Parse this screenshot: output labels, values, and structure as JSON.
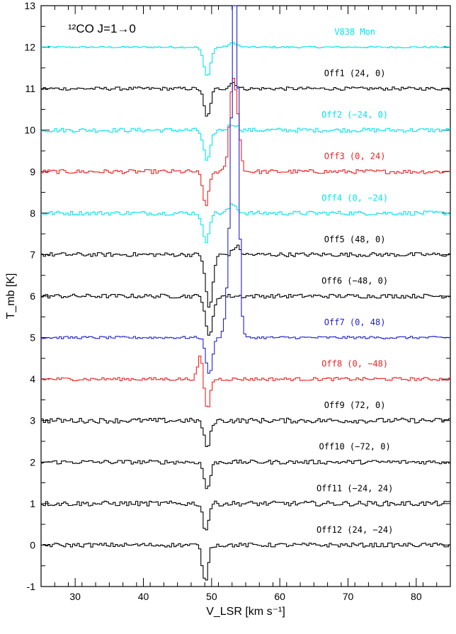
{
  "chart_data": {
    "type": "line",
    "title": "¹²CO J=1→0",
    "xlabel": "V_LSR [km s⁻¹]",
    "ylabel": "T_mb [K]",
    "xlim": [
      25,
      85
    ],
    "ylim": [
      -1,
      13
    ],
    "x_ticks": [
      30,
      40,
      50,
      60,
      70,
      80
    ],
    "y_ticks": [
      -1,
      0,
      1,
      2,
      3,
      4,
      5,
      6,
      7,
      8,
      9,
      10,
      11,
      12,
      13
    ],
    "grid": false,
    "series": [
      {
        "name": "V838 Mon",
        "offset": 12,
        "color": "#00e5ee",
        "features": [
          {
            "v": 49.2,
            "amp": -0.7,
            "w": 0.5
          },
          {
            "v": 53.0,
            "amp": 0.1,
            "w": 0.6
          }
        ],
        "noise": 0.02
      },
      {
        "name": "Off1 (24, 0)",
        "offset": 11,
        "color": "#000000",
        "features": [
          {
            "v": 49.2,
            "amp": -0.7,
            "w": 0.45
          },
          {
            "v": 53.0,
            "amp": 0.15,
            "w": 0.5
          }
        ],
        "noise": 0.04
      },
      {
        "name": "Off2 (−24, 0)",
        "offset": 10,
        "color": "#00e5ee",
        "features": [
          {
            "v": 49.2,
            "amp": -0.75,
            "w": 0.5
          },
          {
            "v": 53.0,
            "amp": 0.15,
            "w": 0.6
          }
        ],
        "noise": 0.05
      },
      {
        "name": "Off3 (0, 24)",
        "offset": 9,
        "color": "#ee2222",
        "features": [
          {
            "v": 49.0,
            "amp": -0.8,
            "w": 0.45
          },
          {
            "v": 53.0,
            "amp": 2.2,
            "w": 0.5
          },
          {
            "v": 53.8,
            "amp": 0.6,
            "w": 0.4
          }
        ],
        "noise": 0.05
      },
      {
        "name": "Off4 (0, −24)",
        "offset": 8,
        "color": "#00e5ee",
        "features": [
          {
            "v": 49.0,
            "amp": -0.7,
            "w": 0.45
          },
          {
            "v": 53.0,
            "amp": 0.2,
            "w": 0.6
          }
        ],
        "noise": 0.05
      },
      {
        "name": "Off5 (48, 0)",
        "offset": 7,
        "color": "#000000",
        "features": [
          {
            "v": 49.5,
            "amp": -1.3,
            "w": 0.5
          },
          {
            "v": 53.5,
            "amp": 0.2,
            "w": 0.5
          }
        ],
        "noise": 0.05
      },
      {
        "name": "Off6 (−48, 0)",
        "offset": 6,
        "color": "#000000",
        "features": [
          {
            "v": 49.5,
            "amp": -1.0,
            "w": 0.5
          }
        ],
        "noise": 0.05
      },
      {
        "name": "Off7 (0, 48)",
        "offset": 5,
        "color": "#2222cc",
        "features": [
          {
            "v": 49.5,
            "amp": -0.9,
            "w": 0.45
          },
          {
            "v": 52.5,
            "amp": 1.5,
            "w": 0.5
          },
          {
            "v": 53.3,
            "amp": 9.0,
            "w": 0.45
          }
        ],
        "noise": 0.03
      },
      {
        "name": "Off8 (0, −48)",
        "offset": 4,
        "color": "#ee2222",
        "features": [
          {
            "v": 48.2,
            "amp": 0.55,
            "w": 0.4
          },
          {
            "v": 49.2,
            "amp": -0.75,
            "w": 0.4
          }
        ],
        "noise": 0.04
      },
      {
        "name": "Off9 (72, 0)",
        "offset": 3,
        "color": "#000000",
        "features": [
          {
            "v": 49.2,
            "amp": -0.65,
            "w": 0.45
          }
        ],
        "noise": 0.06
      },
      {
        "name": "Off10 (−72, 0)",
        "offset": 2,
        "color": "#000000",
        "features": [
          {
            "v": 49.2,
            "amp": -0.65,
            "w": 0.45
          }
        ],
        "noise": 0.05
      },
      {
        "name": "Off11 (−24, 24)",
        "offset": 1,
        "color": "#000000",
        "features": [
          {
            "v": 49.0,
            "amp": -0.65,
            "w": 0.4
          }
        ],
        "noise": 0.06
      },
      {
        "name": "Off12 (24, −24)",
        "offset": 0,
        "color": "#000000",
        "features": [
          {
            "v": 48.9,
            "amp": -0.9,
            "w": 0.4
          }
        ],
        "noise": 0.05
      }
    ]
  }
}
